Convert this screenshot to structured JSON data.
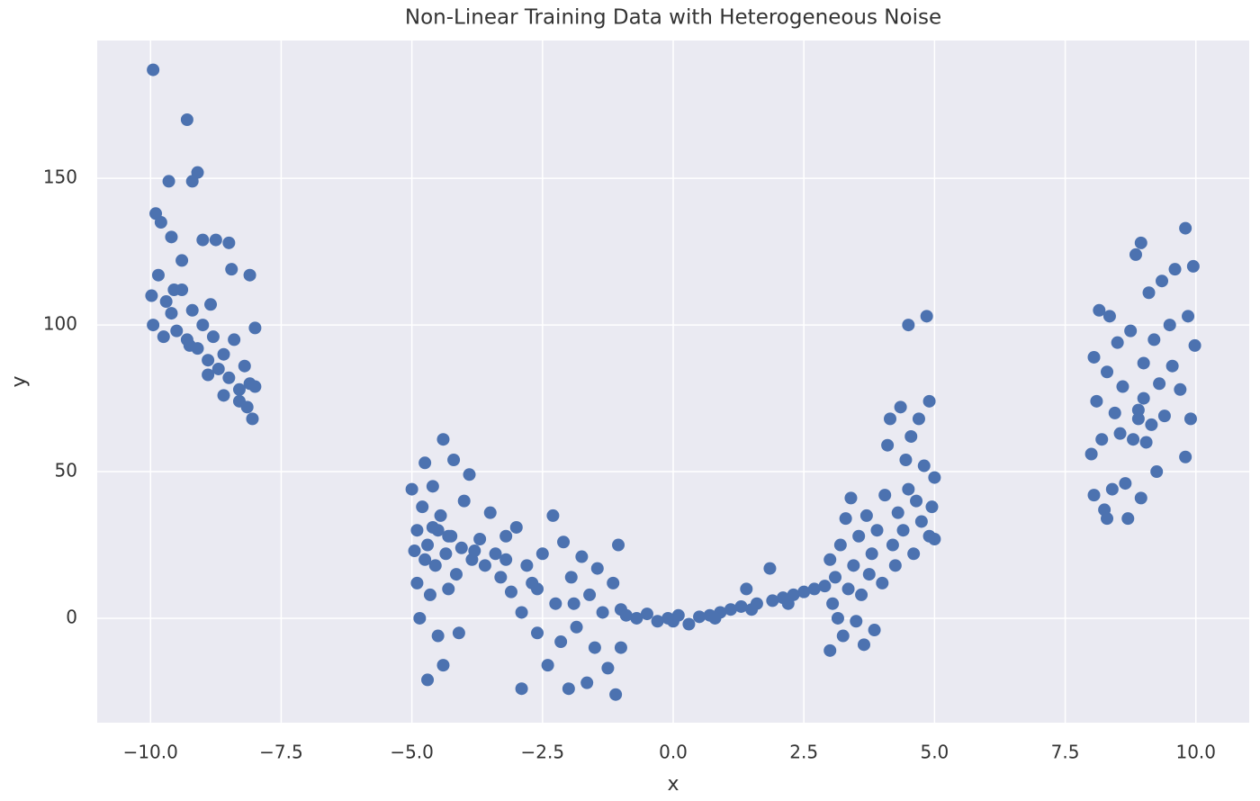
{
  "chart_data": {
    "type": "scatter",
    "title": "Non-Linear Training Data with Heterogeneous Noise",
    "xlabel": "x",
    "ylabel": "y",
    "color": "#4c72b0",
    "grid": true,
    "xlim": [
      -11.02,
      11.02
    ],
    "ylim": [
      -35.6,
      197
    ],
    "xticks": [
      {
        "value": -10,
        "label": "−10.0"
      },
      {
        "value": -7.5,
        "label": "−7.5"
      },
      {
        "value": -5,
        "label": "−5.0"
      },
      {
        "value": -2.5,
        "label": "−2.5"
      },
      {
        "value": 0,
        "label": "0.0"
      },
      2.5,
      {
        "value": 5,
        "label": "5.0"
      },
      7.5,
      {
        "value": 10,
        "label": "10.0"
      }
    ],
    "yticks": [
      0,
      50,
      100,
      150
    ],
    "x": [
      -9.95,
      -9.3,
      -9.1,
      -9.65,
      -9.2,
      -9.9,
      -9.8,
      -9.6,
      -9.0,
      -8.75,
      -8.5,
      -9.4,
      -8.1,
      -9.98,
      -9.95,
      -9.85,
      -9.7,
      -9.6,
      -9.5,
      -9.4,
      -9.3,
      -9.2,
      -9.1,
      -9.0,
      -8.9,
      -8.8,
      -8.7,
      -8.6,
      -8.5,
      -8.4,
      -8.3,
      -8.2,
      -8.1,
      -8.05,
      -8.0,
      -8.0,
      -8.3,
      -8.6,
      -8.9,
      -9.75,
      -9.55,
      -8.45,
      -8.85,
      -9.25,
      -8.15,
      -5.0,
      -4.95,
      -4.9,
      -4.9,
      -4.85,
      -4.8,
      -4.75,
      -4.7,
      -4.7,
      -4.65,
      -4.6,
      -4.55,
      -4.5,
      -4.5,
      -4.45,
      -4.4,
      -4.4,
      -4.35,
      -4.3,
      -4.25,
      -4.2,
      -4.15,
      -4.1,
      -4.05,
      -4.0,
      -3.9,
      -3.85,
      -3.7,
      -3.6,
      -3.5,
      -3.4,
      -3.3,
      -3.2,
      -3.1,
      -3.0,
      -2.9,
      -2.9,
      -2.8,
      -2.7,
      -2.6,
      -2.5,
      -2.4,
      -2.3,
      -2.25,
      -2.15,
      -2.1,
      -2.0,
      -1.95,
      -1.85,
      -1.75,
      -1.65,
      -1.6,
      -1.5,
      -1.45,
      -1.35,
      -1.25,
      -1.15,
      -1.1,
      -1.05,
      -1.0,
      -1.0,
      -4.75,
      -4.6,
      -4.3,
      -3.8,
      -3.2,
      -2.6,
      -1.9,
      -0.9,
      -0.7,
      -0.5,
      -0.3,
      -0.1,
      0.1,
      0.3,
      0.5,
      0.7,
      0.9,
      1.1,
      1.3,
      1.4,
      1.6,
      1.85,
      1.9,
      2.1,
      2.3,
      2.5,
      2.7,
      2.9,
      0.0,
      0.8,
      1.5,
      2.2,
      3.0,
      3.0,
      3.05,
      3.1,
      3.15,
      3.2,
      3.25,
      3.3,
      3.35,
      3.4,
      3.45,
      3.5,
      3.55,
      3.6,
      3.65,
      3.7,
      3.75,
      3.8,
      3.9,
      4.0,
      4.05,
      4.1,
      4.15,
      4.2,
      4.3,
      4.35,
      4.4,
      4.45,
      4.5,
      4.5,
      4.55,
      4.6,
      4.65,
      4.7,
      4.75,
      4.8,
      4.85,
      4.9,
      4.9,
      4.95,
      5.0,
      5.0,
      4.25,
      3.85,
      8.0,
      8.05,
      8.05,
      8.1,
      8.15,
      8.2,
      8.25,
      8.3,
      8.3,
      8.35,
      8.4,
      8.45,
      8.5,
      8.55,
      8.6,
      8.65,
      8.7,
      8.75,
      8.8,
      8.85,
      8.9,
      8.95,
      8.95,
      9.0,
      9.05,
      9.1,
      9.15,
      9.2,
      9.25,
      9.3,
      9.35,
      9.4,
      9.5,
      9.55,
      9.6,
      9.7,
      9.8,
      9.8,
      9.85,
      9.9,
      9.95,
      9.98,
      9.0,
      8.9
    ],
    "values": [
      187,
      170,
      152,
      149,
      149,
      138,
      135,
      130,
      129,
      129,
      128,
      122,
      117,
      110,
      100,
      117,
      108,
      104,
      98,
      112,
      95,
      105,
      92,
      100,
      88,
      96,
      85,
      90,
      82,
      95,
      78,
      86,
      80,
      68,
      79,
      99,
      74,
      76,
      83,
      96,
      112,
      119,
      107,
      93,
      72,
      44,
      23,
      30,
      12,
      0,
      38,
      53,
      -21,
      25,
      8,
      45,
      18,
      -6,
      30,
      35,
      61,
      -16,
      22,
      10,
      28,
      54,
      15,
      -5,
      24,
      40,
      49,
      20,
      27,
      18,
      36,
      22,
      14,
      28,
      9,
      31,
      -24,
      2,
      18,
      12,
      -5,
      22,
      -16,
      35,
      5,
      -8,
      26,
      -24,
      14,
      -3,
      21,
      -22,
      8,
      -10,
      17,
      2,
      -17,
      12,
      -26,
      25,
      3,
      -10,
      20,
      31,
      28,
      23,
      20,
      10,
      5,
      1,
      0,
      1.5,
      -1,
      0,
      1,
      -2,
      0.5,
      1,
      2,
      3,
      4,
      10,
      5,
      17,
      6,
      7,
      8,
      9,
      10,
      11,
      -1,
      0,
      3,
      5,
      -11,
      20,
      5,
      14,
      0,
      25,
      -6,
      34,
      10,
      41,
      18,
      -1,
      28,
      8,
      -9,
      35,
      15,
      22,
      30,
      12,
      42,
      59,
      68,
      25,
      36,
      72,
      30,
      54,
      100,
      44,
      62,
      22,
      40,
      68,
      33,
      52,
      103,
      74,
      28,
      38,
      48,
      27,
      18,
      -4,
      56,
      89,
      42,
      74,
      105,
      61,
      37,
      84,
      34,
      103,
      44,
      70,
      94,
      63,
      79,
      46,
      34,
      98,
      61,
      124,
      71,
      128,
      41,
      87,
      60,
      111,
      66,
      95,
      50,
      80,
      115,
      69,
      100,
      86,
      119,
      78,
      133,
      55,
      103,
      68,
      120,
      93,
      75,
      68
    ]
  }
}
